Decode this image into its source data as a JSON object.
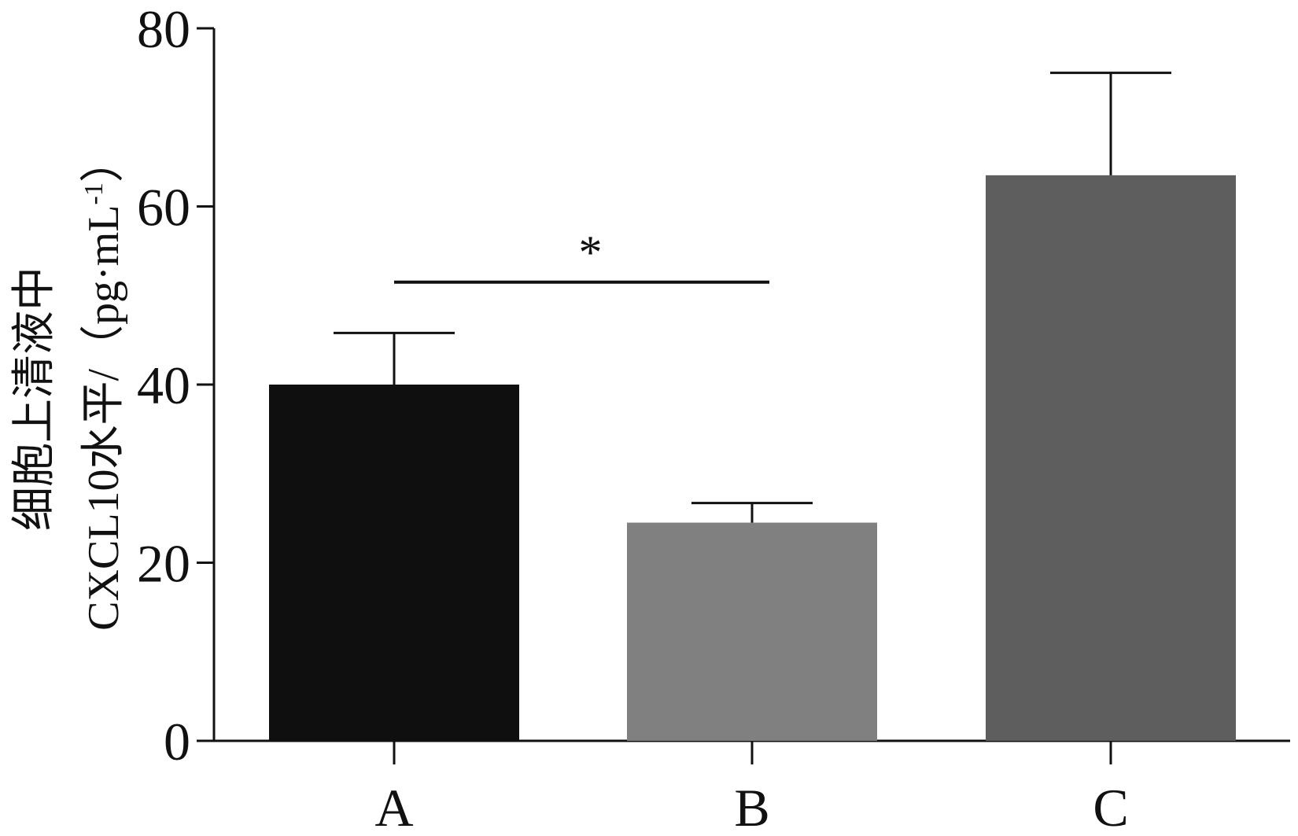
{
  "chart_data": {
    "type": "bar",
    "categories": [
      "A",
      "B",
      "C"
    ],
    "values": [
      40.0,
      24.5,
      63.5
    ],
    "errors": [
      5.8,
      2.2,
      11.5
    ],
    "colors": [
      "#0f0f0f",
      "#808080",
      "#5e5e5e"
    ],
    "ylabel_line1": "细胞上清液中",
    "ylabel_line2": "CXCL10水平/（pg·mL",
    "ylabel_sup": "-1",
    "ylabel_close": "）",
    "ylim": [
      0,
      80
    ],
    "yticks": [
      0,
      20,
      40,
      60,
      80
    ],
    "significance": [
      {
        "from": "A",
        "to": "B",
        "level": 51.5,
        "label": "*"
      }
    ],
    "grid": false,
    "legend": "none"
  }
}
